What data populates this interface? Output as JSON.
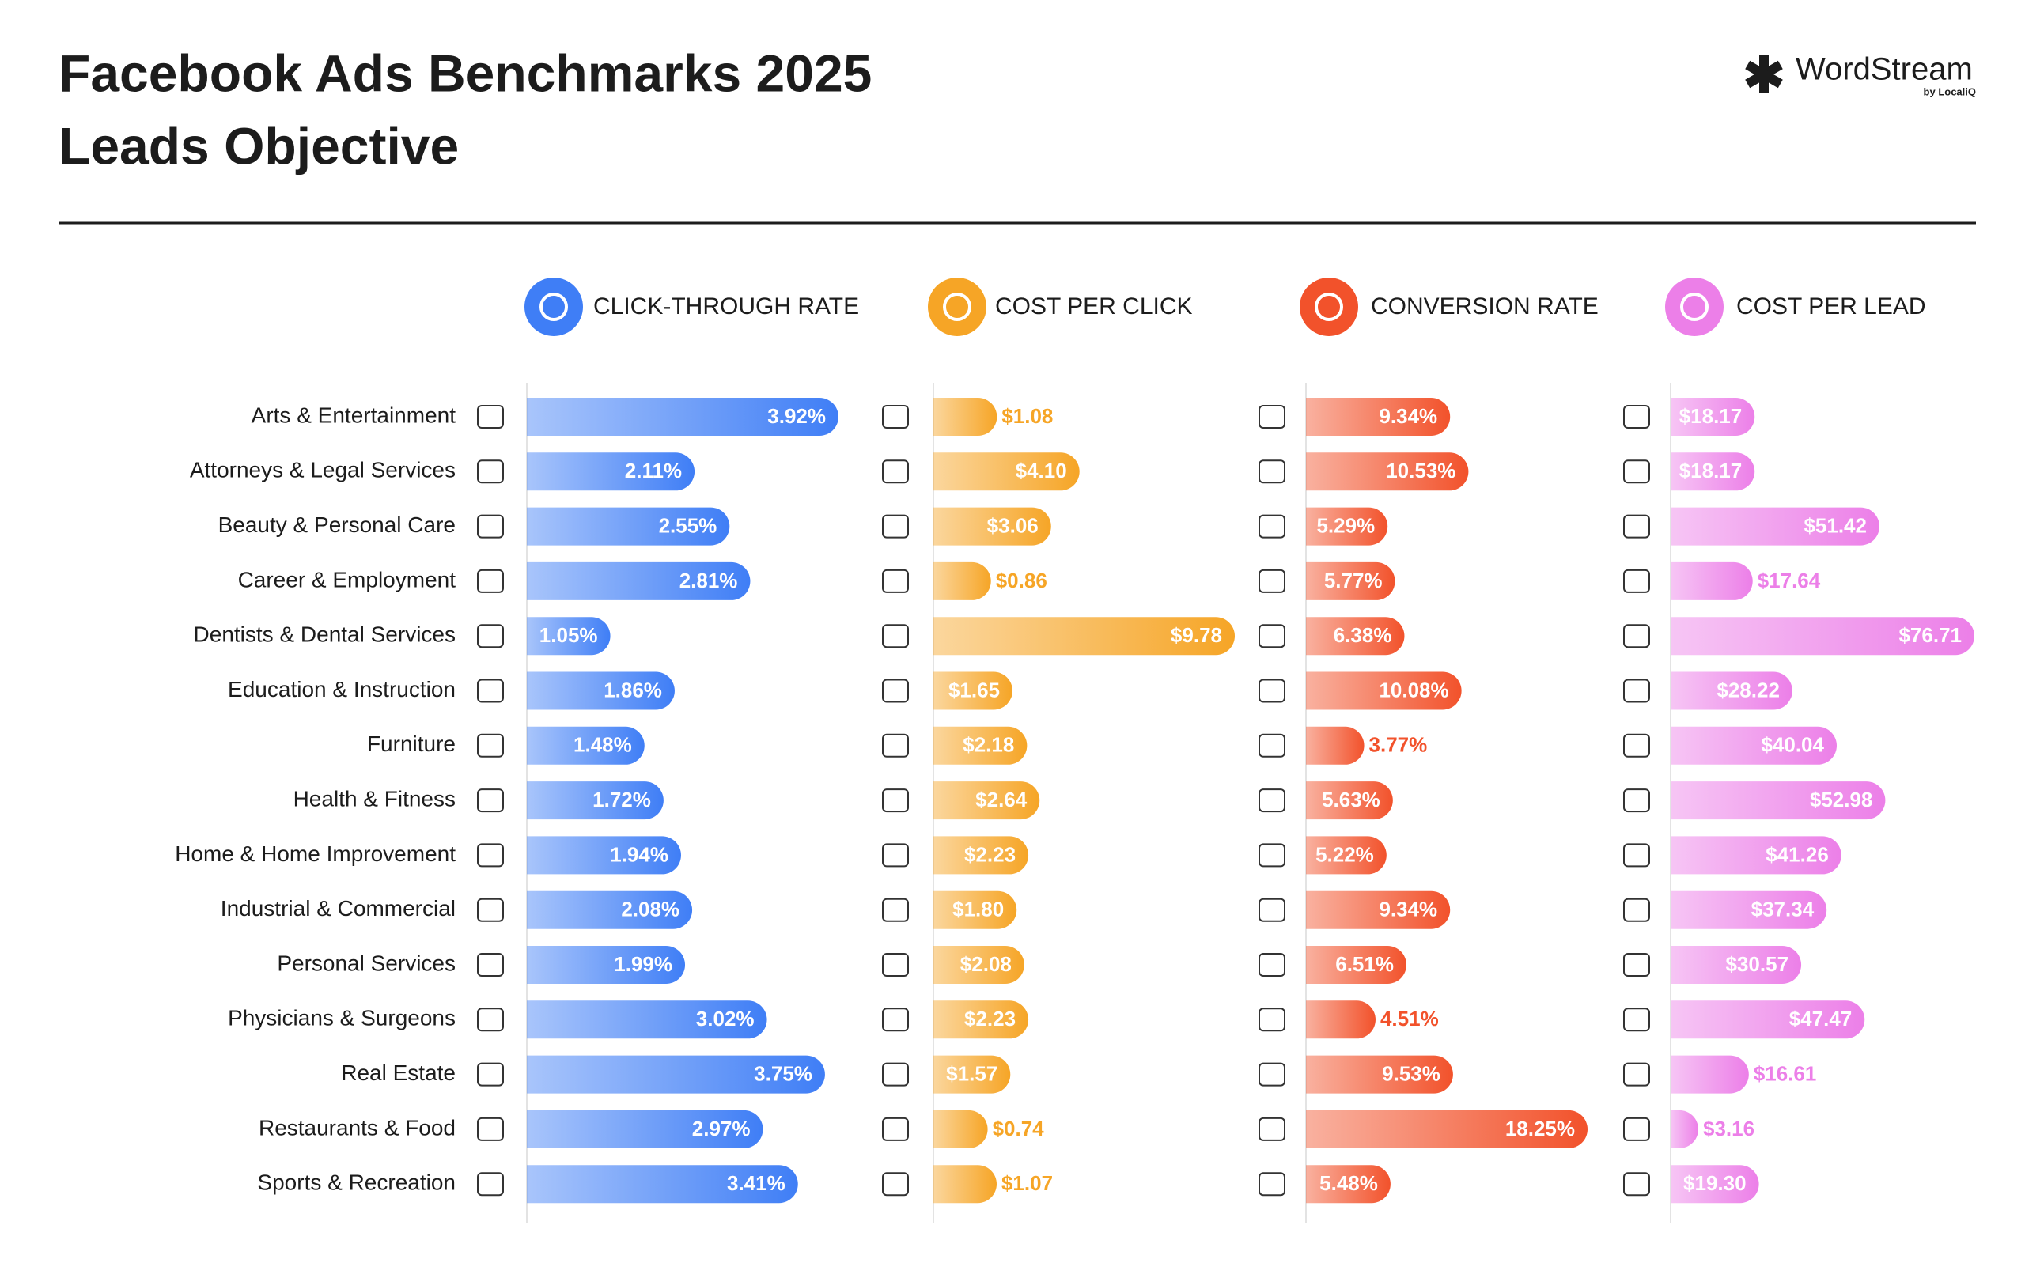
{
  "header": {
    "title_line1": "Facebook Ads Benchmarks 2025",
    "title_line2": "Leads Objective",
    "logo": "WordStream",
    "logo_sub": "by LocaliQ"
  },
  "chart_data": [
    {
      "type": "bar",
      "title": "CLICK-THROUGH RATE",
      "color": "#3f7ef6",
      "categories": [
        "Arts & Entertainment",
        "Attorneys & Legal Services",
        "Beauty & Personal Care",
        "Career & Employment",
        "Dentists & Dental Services",
        "Education & Instruction",
        "Furniture",
        "Health & Fitness",
        "Home & Home Improvement",
        "Industrial & Commercial",
        "Personal Services",
        "Physicians & Surgeons",
        "Real Estate",
        "Restaurants & Food",
        "Sports & Recreation"
      ],
      "values": [
        3.92,
        2.11,
        2.55,
        2.81,
        1.05,
        1.86,
        1.48,
        1.72,
        1.94,
        2.08,
        1.99,
        3.02,
        3.75,
        2.97,
        3.41
      ],
      "value_labels": [
        "3.92%",
        "2.11%",
        "2.55%",
        "2.81%",
        "1.05%",
        "1.86%",
        "1.48%",
        "1.72%",
        "1.94%",
        "2.08%",
        "1.99%",
        "3.02%",
        "3.75%",
        "2.97%",
        "3.41%"
      ]
    },
    {
      "type": "bar",
      "title": "COST PER CLICK",
      "color": "#f6a526",
      "values": [
        1.08,
        4.1,
        3.06,
        0.86,
        9.78,
        1.65,
        2.18,
        2.64,
        2.23,
        1.8,
        2.08,
        2.23,
        1.57,
        0.74,
        1.07
      ],
      "value_labels": [
        "$1.08",
        "$4.10",
        "$3.06",
        "$0.86",
        "$9.78",
        "$1.65",
        "$2.18",
        "$2.64",
        "$2.23",
        "$1.80",
        "$2.08",
        "$2.23",
        "$1.57",
        "$0.74",
        "$1.07"
      ]
    },
    {
      "type": "bar",
      "title": "CONVERSION RATE",
      "color": "#f2522b",
      "values": [
        9.34,
        10.53,
        5.29,
        5.77,
        6.38,
        10.08,
        3.77,
        5.63,
        5.22,
        9.34,
        6.51,
        4.51,
        9.53,
        18.25,
        5.48
      ],
      "value_labels": [
        "9.34%",
        "10.53%",
        "5.29%",
        "5.77%",
        "6.38%",
        "10.08%",
        "3.77%",
        "5.63%",
        "5.22%",
        "9.34%",
        "6.51%",
        "4.51%",
        "9.53%",
        "18.25%",
        "5.48%"
      ]
    },
    {
      "type": "bar",
      "title": "COST PER LEAD",
      "color": "#ec7fe8",
      "values": [
        18.17,
        18.17,
        51.42,
        17.64,
        76.71,
        28.22,
        40.04,
        52.98,
        41.26,
        37.34,
        30.57,
        47.47,
        16.61,
        3.16,
        19.3
      ],
      "value_labels": [
        "$18.17",
        "$18.17",
        "$51.42",
        "$17.64",
        "$76.71",
        "$28.22",
        "$40.04",
        "$52.98",
        "$41.26",
        "$37.34",
        "$30.57",
        "$47.47",
        "$16.61",
        "$3.16",
        "$19.30"
      ]
    }
  ]
}
